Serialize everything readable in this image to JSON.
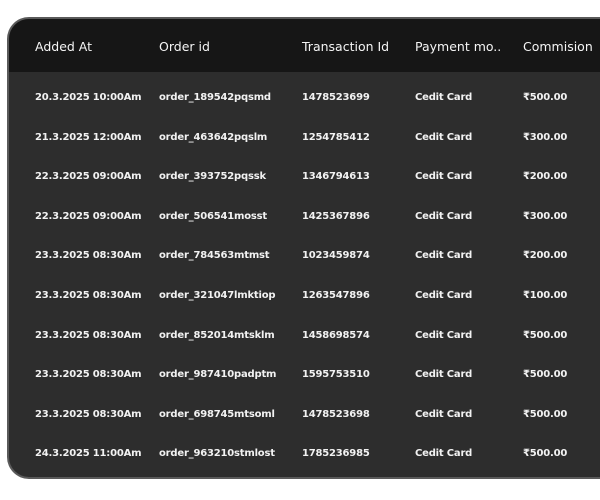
{
  "table": {
    "columns": [
      "Added At",
      "Order id",
      "Transaction Id",
      "Payment mo..",
      "Commision"
    ],
    "rows": [
      [
        "20.3.2025 10:00Am",
        "order_189542pqsmd",
        "1478523699",
        "Cedit Card",
        "₹500.00"
      ],
      [
        "21.3.2025 12:00Am",
        "order_463642pqslm",
        "1254785412",
        "Cedit Card",
        "₹300.00"
      ],
      [
        "22.3.2025 09:00Am",
        "order_393752pqssk",
        "1346794613",
        "Cedit Card",
        "₹200.00"
      ],
      [
        "22.3.2025 09:00Am",
        "order_506541mosst",
        "1425367896",
        "Cedit Card",
        "₹300.00"
      ],
      [
        "23.3.2025 08:30Am",
        "order_784563mtmst",
        "1023459874",
        "Cedit Card",
        "₹200.00"
      ],
      [
        "23.3.2025 08:30Am",
        "order_321047lmktiop",
        "1263547896",
        "Cedit Card",
        "₹100.00"
      ],
      [
        "23.3.2025 08:30Am",
        "order_852014mtsklm",
        "1458698574",
        "Cedit Card",
        "₹500.00"
      ],
      [
        "23.3.2025 08:30Am",
        "order_987410padptm",
        "1595753510",
        "Cedit Card",
        "₹500.00"
      ],
      [
        "23.3.2025 08:30Am",
        "order_698745mtsoml",
        "1478523698",
        "Cedit Card",
        "₹500.00"
      ],
      [
        "24.3.2025 11:00Am",
        "order_963210stmlost",
        "1785236985",
        "Cedit Card",
        "₹500.00"
      ]
    ]
  },
  "colors": {
    "header_bg": "#161616",
    "body_bg": "#2d2d2d",
    "border": "#5a5a5a",
    "text": "#f2f2f2"
  }
}
